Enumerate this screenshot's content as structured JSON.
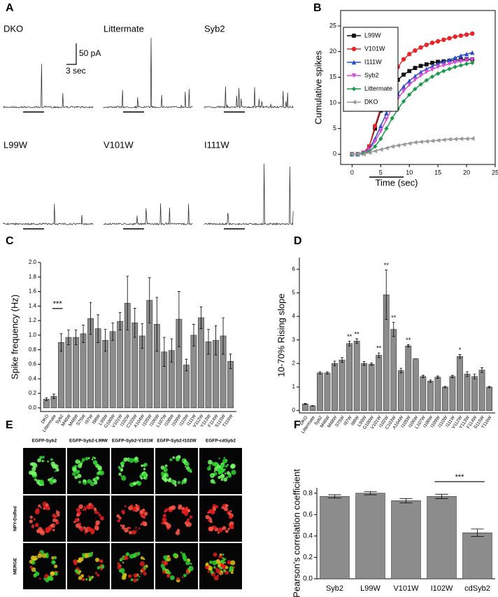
{
  "panel_labels": [
    "A",
    "B",
    "C",
    "D",
    "E",
    "F"
  ],
  "traces": {
    "labels": [
      "DKO",
      "Littermate",
      "Syb2",
      "L99W",
      "V101W",
      "I111W"
    ],
    "scale_y": "50 pA",
    "scale_x": "3 sec"
  },
  "chart_data": [
    {
      "type": "line",
      "xlabel": "Time (sec)",
      "ylabel": "Cumulative spikes",
      "x": [
        0,
        1,
        2,
        3,
        4,
        5,
        6,
        7,
        8,
        9,
        10,
        11,
        12,
        13,
        14,
        15,
        16,
        17,
        18,
        19,
        20,
        21
      ],
      "xlim": [
        -2,
        25
      ],
      "xticks": [
        0,
        5,
        10,
        15,
        20,
        25
      ],
      "ylim": [
        -2,
        28
      ],
      "yticks": [
        0,
        5,
        10,
        15,
        20,
        25
      ],
      "legend": "upper left",
      "series": [
        {
          "name": "L99W",
          "color": "#111111",
          "marker": "square",
          "values": [
            0,
            0,
            0.2,
            1.5,
            5,
            8.5,
            11,
            13,
            14.5,
            15.5,
            16.2,
            16.8,
            17.2,
            17.5,
            17.8,
            18,
            18.1,
            18.2,
            18.3,
            18.4,
            18.5,
            18.5
          ]
        },
        {
          "name": "V101W",
          "color": "#e8262a",
          "marker": "circle",
          "values": [
            0,
            0,
            0.3,
            1.5,
            5.5,
            9,
            12.5,
            15,
            17,
            18.5,
            19.5,
            20.2,
            20.8,
            21.3,
            21.7,
            22,
            22.3,
            22.6,
            22.9,
            23.1,
            23.3,
            23.5
          ]
        },
        {
          "name": "I111W",
          "color": "#2a4fc9",
          "marker": "triangle-up",
          "values": [
            0,
            0,
            0.3,
            1,
            3,
            5.5,
            8,
            10,
            11.8,
            13.2,
            14.3,
            15.2,
            16,
            16.6,
            17.1,
            17.6,
            18,
            18.4,
            18.8,
            19.2,
            19.5,
            19.8
          ]
        },
        {
          "name": "Syb2",
          "color": "#d64ed6",
          "marker": "triangle-down",
          "values": [
            0,
            0,
            0.3,
            0.8,
            2.5,
            4.5,
            6.8,
            9,
            10.8,
            12.3,
            13.5,
            14.5,
            15.3,
            16,
            16.5,
            17,
            17.3,
            17.6,
            17.9,
            18.1,
            18.3,
            18.4
          ]
        },
        {
          "name": "Littermate",
          "color": "#1a9a4a",
          "marker": "diamond",
          "values": [
            0,
            0,
            0.2,
            0.5,
            1.5,
            3,
            5,
            7,
            8.8,
            10.3,
            11.6,
            12.7,
            13.6,
            14.4,
            15.1,
            15.7,
            16.2,
            16.6,
            17,
            17.3,
            17.6,
            17.8
          ]
        },
        {
          "name": "DKO",
          "color": "#999999",
          "marker": "triangle-left",
          "values": [
            0,
            0,
            0,
            0.3,
            0.6,
            0.9,
            1.2,
            1.5,
            1.7,
            1.9,
            2.1,
            2.3,
            2.4,
            2.5,
            2.6,
            2.7,
            2.8,
            2.9,
            2.95,
            3,
            3,
            3.05
          ]
        }
      ]
    },
    {
      "type": "bar",
      "ylabel": "Spike frequency (Hz)",
      "color": "#8c8c8c",
      "categories": [
        "DKO",
        "Littermate",
        "Syb2",
        "M46W",
        "M48W",
        "S75W",
        "I97W",
        "I98W",
        "L99W",
        "G100W",
        "V101W",
        "I102W",
        "C103W",
        "A104W",
        "I105W",
        "I106W",
        "L107W",
        "I108W",
        "I109W",
        "I110W",
        "I111W",
        "V112W",
        "Y113W",
        "F114W",
        "S115W",
        "T116W"
      ],
      "values": [
        0.12,
        0.16,
        0.9,
        0.97,
        0.97,
        1.02,
        1.23,
        1.09,
        0.93,
        1.05,
        1.19,
        1.44,
        1.17,
        0.99,
        1.48,
        1.15,
        0.77,
        0.79,
        1.22,
        0.59,
        1.0,
        1.24,
        0.91,
        0.93,
        0.99,
        0.64
      ],
      "errors": [
        0.02,
        0.03,
        0.12,
        0.1,
        0.1,
        0.12,
        0.22,
        0.19,
        0.15,
        0.12,
        0.12,
        0.37,
        0.2,
        0.17,
        0.31,
        0.37,
        0.2,
        0.16,
        0.38,
        0.08,
        0.15,
        0.15,
        0.17,
        0.2,
        0.25,
        0.1
      ],
      "significance": [
        null,
        null,
        "***",
        null,
        null,
        null,
        null,
        null,
        null,
        null,
        null,
        null,
        null,
        null,
        null,
        null,
        null,
        null,
        null,
        null,
        null,
        null,
        null,
        null,
        null,
        null
      ],
      "significance_bracket": true,
      "ylim": [
        -0.05,
        2.0
      ],
      "yticks": [
        {
          "value": 0,
          "label": "0.0"
        },
        0.2,
        0.4,
        0.6,
        0.8,
        {
          "value": 1,
          "label": "1.0"
        },
        1.2,
        1.4,
        1.6,
        1.8,
        {
          "value": 2,
          "label": "2.0"
        }
      ]
    },
    {
      "type": "bar",
      "ylabel": "10-70% Rising slope",
      "color": "#8c8c8c",
      "categories": [
        "DKO",
        "Littermate",
        "Syb2",
        "M46W",
        "M48W",
        "S75W",
        "I97W",
        "I98W",
        "L99W",
        "G100W",
        "V101W",
        "I102W",
        "C103W",
        "A104W",
        "I105W",
        "I106W",
        "L107W",
        "I108W",
        "I109W",
        "I110W",
        "I111W",
        "V112W",
        "Y113W",
        "F114W",
        "S115W",
        "T116W"
      ],
      "values": [
        0.28,
        0.2,
        1.6,
        1.6,
        2.0,
        2.15,
        2.85,
        2.95,
        2.0,
        1.97,
        2.35,
        4.92,
        3.45,
        1.7,
        2.75,
        2.2,
        1.45,
        1.25,
        1.42,
        1.0,
        1.45,
        2.3,
        1.55,
        1.45,
        1.72,
        1.0
      ],
      "errors": [
        0.02,
        0.01,
        0.05,
        0.05,
        0.1,
        0.1,
        0.1,
        0.1,
        0.08,
        0.05,
        0.1,
        1.05,
        0.3,
        0.1,
        0.05,
        0,
        0.05,
        0.05,
        0.05,
        0.03,
        0.05,
        0.08,
        0.1,
        0.1,
        0.1,
        0.03
      ],
      "significance": [
        null,
        null,
        null,
        null,
        null,
        null,
        "**",
        "**",
        null,
        null,
        "**",
        "**",
        "**",
        null,
        "**",
        null,
        null,
        null,
        null,
        null,
        null,
        "*",
        null,
        null,
        null,
        null
      ],
      "significance_bracket": false,
      "ylim": [
        -0.1,
        6.5
      ],
      "yticks": [
        0,
        1,
        2,
        3,
        4,
        5,
        6
      ]
    },
    {
      "type": "bar",
      "ylabel": "Pearson's correlation coefficient",
      "color": "#8c8c8c",
      "categories": [
        "Syb2",
        "L99W",
        "V101W",
        "I102W",
        "cdSyb2"
      ],
      "values": [
        0.77,
        0.8,
        0.73,
        0.77,
        0.43
      ],
      "errors": [
        0.015,
        0.015,
        0.02,
        0.02,
        0.035
      ],
      "significance": [
        null,
        null,
        null,
        null,
        "***"
      ],
      "significance_bracket": true,
      "ylim": [
        0,
        0.85
      ],
      "yticks": [
        {
          "value": 0,
          "label": "0.0"
        },
        0.2,
        0.4,
        0.6,
        0.8
      ]
    }
  ],
  "images": {
    "columns": [
      "EGFP-Syb2",
      "EGFP-Syb2-L99W",
      "EGFP-Syb2-V101W",
      "EGFP-Syb2-I102W",
      "EGFP-cdSyb2"
    ],
    "rows": [
      "NPY-DsRed",
      "MERGE"
    ]
  }
}
